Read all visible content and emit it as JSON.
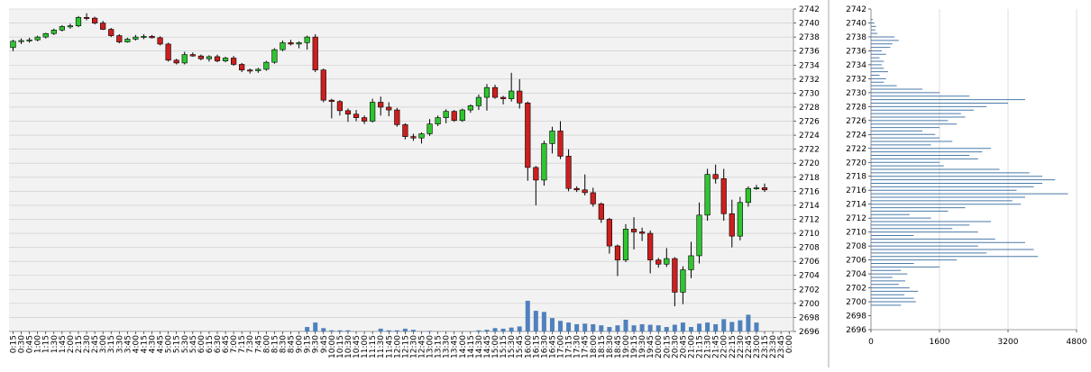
{
  "chart_data": [
    {
      "type": "candlestick",
      "title": "",
      "xlabel": "",
      "ylabel": "",
      "ylim": [
        2696,
        2742
      ],
      "grid": true,
      "y_ticks": [
        2696,
        2698,
        2700,
        2702,
        2704,
        2706,
        2708,
        2710,
        2712,
        2714,
        2716,
        2718,
        2720,
        2722,
        2724,
        2726,
        2728,
        2730,
        2732,
        2734,
        2736,
        2738,
        2740,
        2742
      ],
      "x_ticks": [
        "0:15",
        "0:30",
        "0:45",
        "1:00",
        "1:15",
        "1:30",
        "1:45",
        "2:00",
        "2:15",
        "2:30",
        "2:45",
        "3:00",
        "3:15",
        "3:30",
        "3:45",
        "4:00",
        "4:15",
        "4:30",
        "4:45",
        "5:00",
        "5:15",
        "5:30",
        "5:45",
        "6:00",
        "6:15",
        "6:30",
        "6:45",
        "7:00",
        "7:15",
        "7:30",
        "7:45",
        "8:00",
        "8:15",
        "8:30",
        "8:45",
        "9:00",
        "9:15",
        "9:30",
        "9:45",
        "10:00",
        "10:15",
        "10:30",
        "10:45",
        "11:00",
        "11:15",
        "11:30",
        "11:45",
        "12:00",
        "12:15",
        "12:30",
        "12:45",
        "13:00",
        "13:15",
        "13:30",
        "13:45",
        "14:00",
        "14:15",
        "14:30",
        "14:45",
        "15:00",
        "15:15",
        "15:30",
        "15:45",
        "16:00",
        "16:15",
        "16:30",
        "16:45",
        "17:00",
        "17:15",
        "17:30",
        "17:45",
        "18:00",
        "18:15",
        "18:30",
        "18:45",
        "19:00",
        "19:15",
        "19:30",
        "19:45",
        "20:00",
        "20:15",
        "20:30",
        "20:45",
        "21:00",
        "21:15",
        "21:30",
        "21:45",
        "22:00",
        "22:15",
        "22:30",
        "22:45",
        "23:00",
        "23:15",
        "23:30",
        "23:45",
        "0:00"
      ],
      "colors": {
        "up": "#2fc52f",
        "down": "#cc1f1f",
        "volume": "#4f81bd",
        "profile": "#4a7aa8",
        "grid": "#c8c8c8",
        "plot_bg": "#f2f2f2"
      },
      "candles": [
        [
          2736.5,
          2737.6,
          2736.0,
          2737.4
        ],
        [
          2737.4,
          2737.8,
          2737.0,
          2737.5
        ],
        [
          2737.5,
          2737.9,
          2737.2,
          2737.6
        ],
        [
          2737.6,
          2738.2,
          2737.4,
          2738.0
        ],
        [
          2738.0,
          2738.6,
          2737.8,
          2738.5
        ],
        [
          2738.5,
          2739.2,
          2738.3,
          2739.0
        ],
        [
          2739.0,
          2739.7,
          2738.8,
          2739.5
        ],
        [
          2739.5,
          2739.9,
          2739.2,
          2739.6
        ],
        [
          2739.6,
          2741.0,
          2739.4,
          2740.8
        ],
        [
          2740.8,
          2741.4,
          2740.4,
          2740.7
        ],
        [
          2740.7,
          2740.9,
          2739.8,
          2740.0
        ],
        [
          2740.0,
          2740.3,
          2739.0,
          2739.1
        ],
        [
          2739.1,
          2739.3,
          2738.0,
          2738.2
        ],
        [
          2738.2,
          2738.4,
          2737.1,
          2737.3
        ],
        [
          2737.3,
          2737.9,
          2737.2,
          2737.7
        ],
        [
          2737.7,
          2738.3,
          2737.5,
          2738.0
        ],
        [
          2738.0,
          2738.4,
          2737.7,
          2738.1
        ],
        [
          2738.1,
          2738.3,
          2737.8,
          2737.9
        ],
        [
          2737.9,
          2738.1,
          2736.8,
          2737.0
        ],
        [
          2737.0,
          2737.2,
          2734.5,
          2734.7
        ],
        [
          2734.7,
          2734.9,
          2734.1,
          2734.3
        ],
        [
          2734.3,
          2735.9,
          2734.1,
          2735.5
        ],
        [
          2735.5,
          2735.8,
          2735.2,
          2735.3
        ],
        [
          2735.3,
          2735.5,
          2734.7,
          2734.9
        ],
        [
          2734.9,
          2735.4,
          2734.5,
          2735.2
        ],
        [
          2735.2,
          2735.5,
          2734.4,
          2734.6
        ],
        [
          2734.6,
          2735.2,
          2734.4,
          2735.0
        ],
        [
          2735.0,
          2735.3,
          2733.9,
          2734.1
        ],
        [
          2734.1,
          2734.3,
          2733.0,
          2733.3
        ],
        [
          2733.3,
          2733.5,
          2732.8,
          2733.2
        ],
        [
          2733.2,
          2733.6,
          2732.9,
          2733.4
        ],
        [
          2733.4,
          2734.6,
          2733.2,
          2734.4
        ],
        [
          2734.4,
          2736.4,
          2734.2,
          2736.2
        ],
        [
          2736.2,
          2737.5,
          2736.0,
          2737.2
        ],
        [
          2737.2,
          2737.6,
          2736.8,
          2737.0
        ],
        [
          2737.0,
          2737.4,
          2736.4,
          2737.2
        ],
        [
          2737.2,
          2738.2,
          2736.2,
          2738.0
        ],
        [
          2738.0,
          2738.4,
          2733.0,
          2733.3
        ],
        [
          2733.3,
          2733.5,
          2728.7,
          2729.0
        ],
        [
          2729.0,
          2729.2,
          2726.4,
          2728.8
        ],
        [
          2728.8,
          2729.0,
          2726.8,
          2727.5
        ],
        [
          2727.5,
          2727.8,
          2725.9,
          2727.0
        ],
        [
          2727.0,
          2727.6,
          2726.0,
          2726.5
        ],
        [
          2726.5,
          2726.8,
          2725.6,
          2726.0
        ],
        [
          2726.0,
          2729.2,
          2725.8,
          2728.7
        ],
        [
          2728.7,
          2729.5,
          2726.8,
          2728.0
        ],
        [
          2728.0,
          2728.7,
          2726.7,
          2727.6
        ],
        [
          2727.6,
          2727.9,
          2725.2,
          2725.5
        ],
        [
          2725.5,
          2725.7,
          2723.4,
          2723.8
        ],
        [
          2723.8,
          2724.2,
          2723.2,
          2723.6
        ],
        [
          2723.6,
          2724.4,
          2722.8,
          2724.2
        ],
        [
          2724.2,
          2726.3,
          2723.9,
          2725.6
        ],
        [
          2725.6,
          2726.8,
          2725.3,
          2726.5
        ],
        [
          2726.5,
          2727.7,
          2725.7,
          2727.4
        ],
        [
          2727.4,
          2727.6,
          2725.9,
          2726.1
        ],
        [
          2726.1,
          2727.8,
          2725.9,
          2727.6
        ],
        [
          2727.6,
          2728.4,
          2727.2,
          2728.2
        ],
        [
          2728.2,
          2729.8,
          2727.6,
          2729.4
        ],
        [
          2729.4,
          2731.3,
          2727.5,
          2730.8
        ],
        [
          2730.8,
          2731.2,
          2729.2,
          2729.4
        ],
        [
          2729.4,
          2729.6,
          2728.4,
          2729.2
        ],
        [
          2729.2,
          2732.9,
          2728.8,
          2730.3
        ],
        [
          2730.3,
          2732.0,
          2727.8,
          2728.6
        ],
        [
          2728.6,
          2728.8,
          2717.5,
          2719.4
        ],
        [
          2719.4,
          2719.6,
          2714.0,
          2717.6
        ],
        [
          2717.6,
          2723.2,
          2716.8,
          2722.8
        ],
        [
          2722.8,
          2725.2,
          2721.4,
          2724.6
        ],
        [
          2724.6,
          2726.0,
          2720.6,
          2721.0
        ],
        [
          2721.0,
          2722.0,
          2716.0,
          2716.4
        ],
        [
          2716.4,
          2716.7,
          2715.9,
          2716.2
        ],
        [
          2716.2,
          2718.4,
          2715.4,
          2715.8
        ],
        [
          2715.8,
          2716.5,
          2713.8,
          2714.2
        ],
        [
          2714.2,
          2714.4,
          2711.5,
          2712.0
        ],
        [
          2712.0,
          2712.2,
          2707.1,
          2708.2
        ],
        [
          2708.2,
          2708.4,
          2703.9,
          2706.2
        ],
        [
          2706.2,
          2711.3,
          2705.9,
          2710.6
        ],
        [
          2710.6,
          2712.3,
          2707.7,
          2710.2
        ],
        [
          2710.2,
          2710.8,
          2708.9,
          2710.0
        ],
        [
          2710.0,
          2710.4,
          2704.3,
          2706.2
        ],
        [
          2706.2,
          2706.5,
          2705.1,
          2705.6
        ],
        [
          2705.6,
          2707.9,
          2705.2,
          2706.4
        ],
        [
          2706.4,
          2706.6,
          2699.6,
          2701.6
        ],
        [
          2701.6,
          2705.3,
          2699.9,
          2704.8
        ],
        [
          2704.8,
          2708.8,
          2703.6,
          2706.8
        ],
        [
          2706.8,
          2714.4,
          2705.7,
          2712.6
        ],
        [
          2712.6,
          2719.2,
          2711.8,
          2718.4
        ],
        [
          2718.4,
          2719.8,
          2717.1,
          2717.8
        ],
        [
          2717.8,
          2719.2,
          2711.8,
          2712.8
        ],
        [
          2712.8,
          2714.8,
          2708.0,
          2709.6
        ],
        [
          2709.6,
          2715.2,
          2709.0,
          2714.4
        ],
        [
          2714.4,
          2716.7,
          2713.8,
          2716.4
        ],
        [
          2716.4,
          2716.9,
          2716.2,
          2716.5
        ],
        [
          2716.5,
          2717.1,
          2715.9,
          2716.2
        ]
      ],
      "volume": [
        0,
        0,
        0,
        0,
        0,
        0,
        0,
        0,
        0,
        0,
        0,
        0,
        0,
        0,
        0,
        0,
        0,
        0,
        0,
        0,
        0,
        0,
        0,
        0,
        0,
        0,
        0,
        0,
        0,
        0,
        0,
        0,
        0,
        0,
        0,
        0,
        0.08,
        0.16,
        0.06,
        0.02,
        0.02,
        0.02,
        0,
        0,
        0,
        0.05,
        0.02,
        0.02,
        0.05,
        0.03,
        0,
        0.01,
        0,
        0,
        0,
        0,
        0,
        0.02,
        0.03,
        0.06,
        0.05,
        0.07,
        0.09,
        0.55,
        0.37,
        0.35,
        0.24,
        0.19,
        0.16,
        0.13,
        0.14,
        0.13,
        0.11,
        0.08,
        0.11,
        0.21,
        0.11,
        0.13,
        0.12,
        0.11,
        0.08,
        0.12,
        0.16,
        0.08,
        0.14,
        0.16,
        0.13,
        0.22,
        0.17,
        0.2,
        0.3,
        0.16,
        0,
        0,
        0,
        0,
        0,
        0
      ],
      "volume_note": "fraction of pane height"
    },
    {
      "type": "bar",
      "orientation": "horizontal",
      "title": "",
      "xlabel": "",
      "ylabel": "",
      "xlim": [
        0,
        4800
      ],
      "ylim": [
        2696,
        2742
      ],
      "grid": true,
      "x_ticks": [
        0,
        1600,
        3200,
        4800
      ],
      "y_ticks": [
        2696,
        2698,
        2700,
        2702,
        2704,
        2706,
        2708,
        2710,
        2712,
        2714,
        2716,
        2718,
        2720,
        2722,
        2724,
        2726,
        2728,
        2730,
        2732,
        2734,
        2736,
        2738,
        2740,
        2742
      ],
      "profile": [
        [
          2699.5,
          700
        ],
        [
          2700.0,
          1050
        ],
        [
          2700.5,
          1000
        ],
        [
          2701.0,
          780
        ],
        [
          2701.5,
          1100
        ],
        [
          2702.0,
          900
        ],
        [
          2702.5,
          650
        ],
        [
          2703.0,
          800
        ],
        [
          2703.5,
          500
        ],
        [
          2704.0,
          850
        ],
        [
          2704.5,
          700
        ],
        [
          2705.0,
          1600
        ],
        [
          2705.5,
          1000
        ],
        [
          2706.0,
          2000
        ],
        [
          2706.5,
          3900
        ],
        [
          2707.0,
          2700
        ],
        [
          2707.5,
          3800
        ],
        [
          2708.0,
          2500
        ],
        [
          2708.5,
          3600
        ],
        [
          2709.0,
          2900
        ],
        [
          2709.5,
          1000
        ],
        [
          2710.0,
          2500
        ],
        [
          2710.5,
          1900
        ],
        [
          2711.0,
          2300
        ],
        [
          2711.5,
          2800
        ],
        [
          2712.0,
          1400
        ],
        [
          2712.5,
          900
        ],
        [
          2713.0,
          1800
        ],
        [
          2713.5,
          2200
        ],
        [
          2714.0,
          3500
        ],
        [
          2714.5,
          3300
        ],
        [
          2715.0,
          3600
        ],
        [
          2715.5,
          4600
        ],
        [
          2716.0,
          3400
        ],
        [
          2716.5,
          3800
        ],
        [
          2717.0,
          4000
        ],
        [
          2717.5,
          4300
        ],
        [
          2718.0,
          4000
        ],
        [
          2718.5,
          3700
        ],
        [
          2719.0,
          3000
        ],
        [
          2719.5,
          1700
        ],
        [
          2720.0,
          1600
        ],
        [
          2720.5,
          2500
        ],
        [
          2721.0,
          2300
        ],
        [
          2721.5,
          2600
        ],
        [
          2722.0,
          2800
        ],
        [
          2722.5,
          1400
        ],
        [
          2723.0,
          1900
        ],
        [
          2723.5,
          1600
        ],
        [
          2724.0,
          1500
        ],
        [
          2724.5,
          1200
        ],
        [
          2725.0,
          1600
        ],
        [
          2725.5,
          2000
        ],
        [
          2726.0,
          1800
        ],
        [
          2726.5,
          2200
        ],
        [
          2727.0,
          2100
        ],
        [
          2727.5,
          2400
        ],
        [
          2728.0,
          2700
        ],
        [
          2728.5,
          3200
        ],
        [
          2729.0,
          3600
        ],
        [
          2729.5,
          2300
        ],
        [
          2730.0,
          1600
        ],
        [
          2730.5,
          1200
        ],
        [
          2731.0,
          600
        ],
        [
          2731.5,
          300
        ],
        [
          2732.0,
          350
        ],
        [
          2732.5,
          200
        ],
        [
          2733.0,
          400
        ],
        [
          2733.5,
          300
        ],
        [
          2734.0,
          250
        ],
        [
          2734.5,
          300
        ],
        [
          2735.0,
          200
        ],
        [
          2735.5,
          350
        ],
        [
          2736.0,
          250
        ],
        [
          2736.5,
          450
        ],
        [
          2737.0,
          500
        ],
        [
          2737.5,
          650
        ],
        [
          2738.0,
          550
        ],
        [
          2738.5,
          150
        ],
        [
          2739.0,
          100
        ],
        [
          2739.5,
          120
        ],
        [
          2740.0,
          80
        ],
        [
          2740.5,
          40
        ]
      ]
    }
  ]
}
